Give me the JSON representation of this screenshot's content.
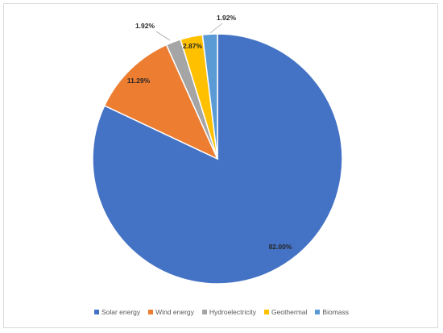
{
  "chart_data": {
    "type": "pie",
    "title": "",
    "categories": [
      "Solar energy",
      "Wind energy",
      "Hydroelectricity",
      "Geothermal",
      "Biomass"
    ],
    "values": [
      82.0,
      11.29,
      1.92,
      2.87,
      1.92
    ],
    "labels": [
      "82.00%",
      "11.29%",
      "1.92%",
      "2.87%",
      "1.92%"
    ],
    "colors": [
      "#4472C4",
      "#ED7D31",
      "#A5A5A5",
      "#FFC000",
      "#5B9BD5"
    ],
    "start_angle_deg": 0,
    "direction": "clockwise",
    "legend_position": "bottom"
  }
}
